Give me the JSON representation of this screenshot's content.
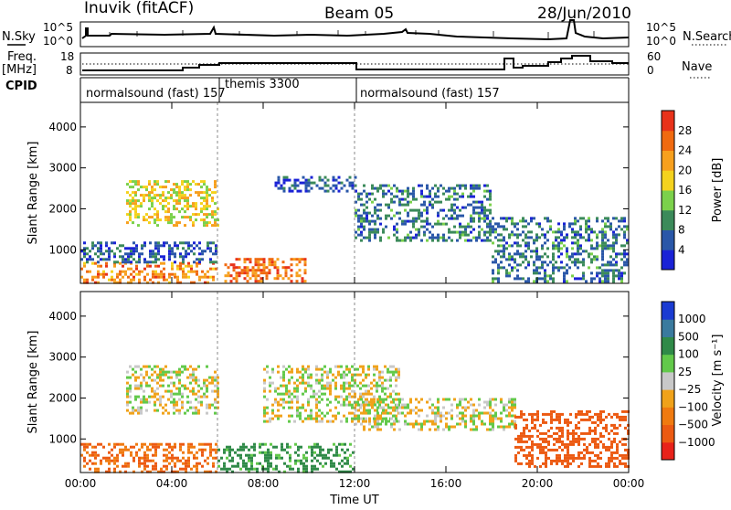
{
  "header": {
    "station": "Inuvik (fitACF)",
    "beam": "Beam 05",
    "date": "28/Jun/2010"
  },
  "sky_panel": {
    "left_label": "N.Sky",
    "right_label": "N.Search",
    "left_ticks": [
      "10^5",
      "10^0"
    ],
    "right_ticks": [
      "10^5",
      "10^0"
    ]
  },
  "freq_panel": {
    "left_label_1": "Freq.",
    "left_label_2": "[MHz]",
    "right_label": "Nave",
    "left_ticks": [
      "18",
      "8"
    ],
    "right_ticks": [
      "60",
      "0"
    ]
  },
  "cpid": {
    "label": "CPID",
    "segments": [
      "normalsound (fast) 157",
      "themis 3300",
      "normalsound (fast) 157"
    ],
    "boundaries_hours": [
      6.0,
      12.0
    ]
  },
  "colors": {
    "power": [
      "#1a22d6",
      "#2a57a8",
      "#3b8a5a",
      "#7bd14b",
      "#f4d21e",
      "#f7a01e",
      "#f06a10",
      "#e8321a"
    ],
    "velocity": [
      "#1a3bd2",
      "#3a7a9e",
      "#2f8a48",
      "#62c94a",
      "#c8c8c8",
      "#f0a21a",
      "#f07a10",
      "#ec5a12",
      "#e8221a"
    ]
  },
  "chart_data": [
    {
      "type": "heatmap",
      "title": "Power",
      "xlabel": "",
      "ylabel": "Slant Range [km]",
      "x_ticks": [
        "00:00",
        "04:00",
        "08:00",
        "12:00",
        "16:00",
        "20:00",
        "00:00"
      ],
      "xlim_hours": [
        0,
        24
      ],
      "y_ticks": [
        1000,
        2000,
        3000,
        4000
      ],
      "ylim": [
        180,
        4600
      ],
      "colorbar": {
        "label": "Power [dB]",
        "range": [
          0,
          32
        ],
        "ticks": [
          4,
          8,
          12,
          16,
          20,
          24,
          28
        ]
      },
      "regions": [
        {
          "start_h": 0.0,
          "end_h": 6.0,
          "low_km": 200,
          "high_km": 700,
          "value": 24
        },
        {
          "start_h": 0.0,
          "end_h": 6.0,
          "low_km": 700,
          "high_km": 1200,
          "value": 6
        },
        {
          "start_h": 2.0,
          "end_h": 6.0,
          "low_km": 1600,
          "high_km": 2700,
          "value": 18
        },
        {
          "start_h": 6.3,
          "end_h": 9.8,
          "low_km": 200,
          "high_km": 800,
          "value": 26
        },
        {
          "start_h": 8.5,
          "end_h": 12.0,
          "low_km": 2400,
          "high_km": 2800,
          "value": 6
        },
        {
          "start_h": 12.0,
          "end_h": 18.0,
          "low_km": 1200,
          "high_km": 2600,
          "value": 8
        },
        {
          "start_h": 18.0,
          "end_h": 24.0,
          "low_km": 200,
          "high_km": 1800,
          "value": 8
        }
      ]
    },
    {
      "type": "heatmap",
      "title": "Velocity",
      "xlabel": "Time UT",
      "ylabel": "Slant Range [km]",
      "x_ticks": [
        "00:00",
        "04:00",
        "08:00",
        "12:00",
        "16:00",
        "20:00",
        "00:00"
      ],
      "xlim_hours": [
        0,
        24
      ],
      "y_ticks": [
        1000,
        2000,
        3000,
        4000
      ],
      "ylim": [
        180,
        4600
      ],
      "colorbar": {
        "label": "Velocity [m s⁻¹]",
        "tick_labels": [
          "1000",
          "500",
          "100",
          "25",
          "−25",
          "−100",
          "−500",
          "−1000"
        ]
      },
      "regions": [
        {
          "start_h": 0.0,
          "end_h": 6.0,
          "low_km": 200,
          "high_km": 900,
          "value": -300
        },
        {
          "start_h": 2.0,
          "end_h": 6.0,
          "low_km": 1600,
          "high_km": 2800,
          "value": 0
        },
        {
          "start_h": 6.0,
          "end_h": 12.0,
          "low_km": 200,
          "high_km": 900,
          "value": 100
        },
        {
          "start_h": 8.0,
          "end_h": 14.0,
          "low_km": 1400,
          "high_km": 2800,
          "value": 0
        },
        {
          "start_h": 12.0,
          "end_h": 19.0,
          "low_km": 1200,
          "high_km": 2000,
          "value": 0
        },
        {
          "start_h": 19.0,
          "end_h": 24.0,
          "low_km": 300,
          "high_km": 1700,
          "value": -400
        }
      ]
    }
  ]
}
